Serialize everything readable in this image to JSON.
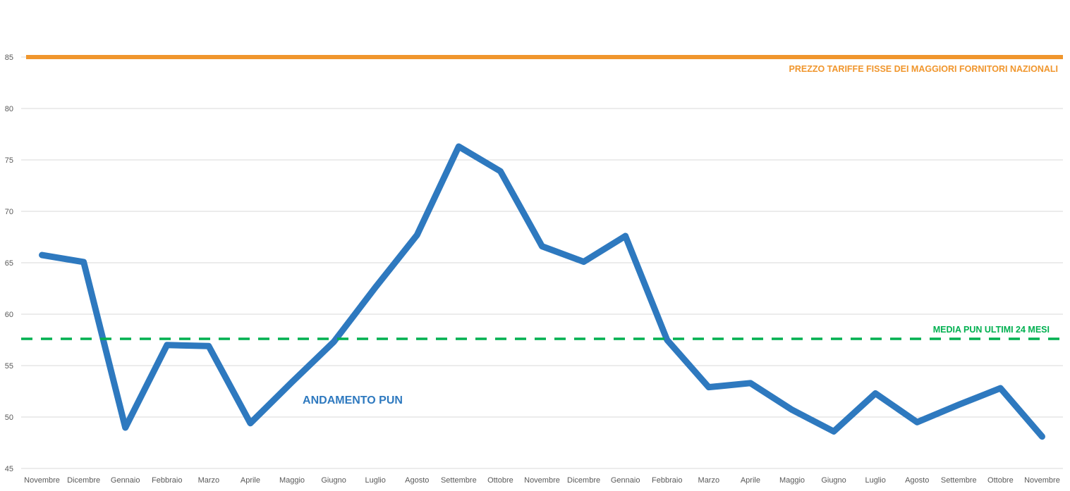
{
  "chart_data": {
    "type": "line",
    "title": "",
    "xlabel": "",
    "ylabel": "",
    "ylim": [
      45,
      85
    ],
    "yticks": [
      45,
      50,
      55,
      60,
      65,
      70,
      75,
      80,
      85
    ],
    "grid": true,
    "categories": [
      "Novembre",
      "Dicembre",
      "Gennaio",
      "Febbraio",
      "Marzo",
      "Aprile",
      "Maggio",
      "Giugno",
      "Luglio",
      "Agosto",
      "Settembre",
      "Ottobre",
      "Novembre",
      "Dicembre",
      "Gennaio",
      "Febbraio",
      "Marzo",
      "Aprile",
      "Maggio",
      "Giugno",
      "Luglio",
      "Agosto",
      "Settembre",
      "Ottobre",
      "Novembre"
    ],
    "series": [
      {
        "name": "ANDAMENTO PUN",
        "color": "#2E79BF",
        "style": "solid",
        "values": [
          65.75,
          65.07,
          48.97,
          57.0,
          56.9,
          49.4,
          53.4,
          57.3,
          62.6,
          67.7,
          76.3,
          73.9,
          66.6,
          65.1,
          67.6,
          57.5,
          52.9,
          53.3,
          50.7,
          48.6,
          52.3,
          49.5,
          51.2,
          52.8,
          48.1
        ]
      },
      {
        "name": "PREZZO TARIFFE FISSE DEI MAGGIORI FORNITORI NAZIONALI",
        "color": "#F0962D",
        "style": "solid",
        "constant": 85
      },
      {
        "name": "MEDIA PUN ULTIMI 24 MESI",
        "color": "#00B050",
        "style": "dashed",
        "constant": 57.6
      }
    ]
  }
}
